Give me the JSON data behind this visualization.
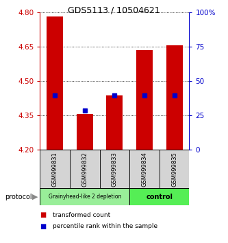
{
  "title": "GDS5113 / 10504621",
  "samples": [
    "GSM999831",
    "GSM999832",
    "GSM999833",
    "GSM999834",
    "GSM999835"
  ],
  "bar_bottom": 4.2,
  "bar_tops": [
    4.78,
    4.355,
    4.435,
    4.635,
    4.655
  ],
  "percentile_values": [
    4.435,
    4.37,
    4.435,
    4.435,
    4.435
  ],
  "ylim": [
    4.2,
    4.8
  ],
  "yticks_left": [
    4.2,
    4.35,
    4.5,
    4.65,
    4.8
  ],
  "yticks_right": [
    0,
    25,
    50,
    75,
    100
  ],
  "bar_color": "#cc0000",
  "percentile_color": "#0000cc",
  "group1_label": "Grainyhead-like 2 depletion",
  "group2_label": "control",
  "group1_indices": [
    0,
    1,
    2
  ],
  "group2_indices": [
    3,
    4
  ],
  "group1_color": "#99ee99",
  "group2_color": "#55ee55",
  "protocol_label": "protocol",
  "legend_red": "transformed count",
  "legend_blue": "percentile rank within the sample",
  "background_color": "#ffffff",
  "left_tick_color": "#cc0000",
  "right_tick_color": "#0000cc",
  "title_fontsize": 9,
  "tick_fontsize": 7.5,
  "sample_fontsize": 6,
  "legend_fontsize": 6.5
}
